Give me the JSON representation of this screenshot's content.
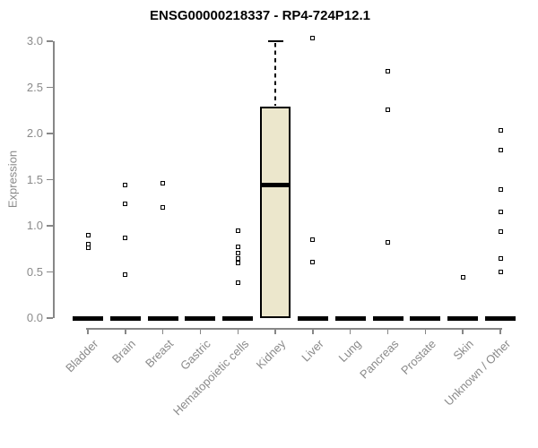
{
  "figure": {
    "background": "#ffffff"
  },
  "chart_data": {
    "type": "boxplot",
    "title": "ENSG00000218337 - RP4-724P12.1",
    "ylabel": "Expression",
    "xlabel": "",
    "ylim": [
      0.0,
      3.0
    ],
    "yticks": [
      0.0,
      0.5,
      1.0,
      1.5,
      2.0,
      2.5,
      3.0
    ],
    "grid": false,
    "legend": "none",
    "categories": [
      "Bladder",
      "Brain",
      "Breast",
      "Gastric",
      "Hematopoietic cells",
      "Kidney",
      "Liver",
      "Lung",
      "Pancreas",
      "Prostate",
      "Skin",
      "Unknown / Other"
    ],
    "series": [
      {
        "category": "Bladder",
        "q1": 0,
        "median": 0,
        "q3": 0,
        "whisker_low": 0,
        "whisker_high": 0,
        "outliers": [
          0.9,
          0.8,
          0.76
        ]
      },
      {
        "category": "Brain",
        "q1": 0,
        "median": 0,
        "q3": 0,
        "whisker_low": 0,
        "whisker_high": 0,
        "outliers": [
          1.44,
          1.24,
          0.87,
          0.47
        ]
      },
      {
        "category": "Breast",
        "q1": 0,
        "median": 0,
        "q3": 0,
        "whisker_low": 0,
        "whisker_high": 0,
        "outliers": [
          1.46,
          1.2
        ]
      },
      {
        "category": "Gastric",
        "q1": 0,
        "median": 0,
        "q3": 0,
        "whisker_low": 0,
        "whisker_high": 0,
        "outliers": []
      },
      {
        "category": "Hematopoietic cells",
        "q1": 0,
        "median": 0,
        "q3": 0,
        "whisker_low": 0,
        "whisker_high": 0,
        "outliers": [
          0.95,
          0.77,
          0.7,
          0.65,
          0.6,
          0.38
        ]
      },
      {
        "category": "Kidney",
        "q1": 0,
        "median": 1.44,
        "q3": 2.29,
        "whisker_low": 0,
        "whisker_high": 3.0,
        "outliers": []
      },
      {
        "category": "Liver",
        "q1": 0,
        "median": 0,
        "q3": 0,
        "whisker_low": 0,
        "whisker_high": 0,
        "outliers": [
          3.03,
          0.85,
          0.61
        ]
      },
      {
        "category": "Lung",
        "q1": 0,
        "median": 0,
        "q3": 0,
        "whisker_low": 0,
        "whisker_high": 0,
        "outliers": []
      },
      {
        "category": "Pancreas",
        "q1": 0,
        "median": 0,
        "q3": 0,
        "whisker_low": 0,
        "whisker_high": 0,
        "outliers": [
          2.67,
          2.26,
          0.82
        ]
      },
      {
        "category": "Prostate",
        "q1": 0,
        "median": 0,
        "q3": 0,
        "whisker_low": 0,
        "whisker_high": 0,
        "outliers": []
      },
      {
        "category": "Skin",
        "q1": 0,
        "median": 0,
        "q3": 0,
        "whisker_low": 0,
        "whisker_high": 0,
        "outliers": [
          0.44
        ]
      },
      {
        "category": "Unknown / Other",
        "q1": 0,
        "median": 0,
        "q3": 0,
        "whisker_low": 0,
        "whisker_high": 0,
        "outliers": [
          2.03,
          1.82,
          1.39,
          1.15,
          0.94,
          0.65,
          0.5
        ]
      }
    ],
    "colors": {
      "box_fill": "#ece7cc",
      "box_border": "#000000",
      "marker": "#000000",
      "axis": "#878787",
      "tick_text": "#8a8a8a",
      "title_text": "#000000"
    }
  }
}
